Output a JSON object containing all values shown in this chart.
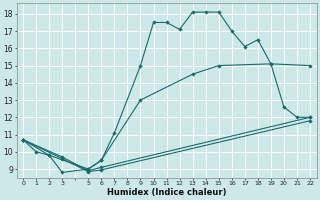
{
  "xlabel": "Humidex (Indice chaleur)",
  "bg_color": "#cde8e8",
  "grid_color": "#ffffff",
  "line_color": "#1a6b6b",
  "xlim": [
    -0.5,
    22.5
  ],
  "ylim": [
    8.5,
    18.6
  ],
  "xticks": [
    0,
    1,
    2,
    3,
    5,
    6,
    7,
    8,
    9,
    10,
    11,
    12,
    13,
    14,
    15,
    16,
    17,
    18,
    19,
    20,
    21,
    22
  ],
  "yticks": [
    9,
    10,
    11,
    12,
    13,
    14,
    15,
    16,
    17,
    18
  ],
  "line1_x": [
    0,
    1,
    2,
    3,
    5,
    6,
    7,
    9,
    10,
    11,
    12,
    13,
    14,
    15,
    16,
    17,
    18,
    19,
    20,
    21,
    22
  ],
  "line1_y": [
    10.7,
    10.0,
    9.8,
    8.8,
    9.0,
    9.5,
    11.1,
    15.0,
    17.5,
    17.5,
    17.1,
    18.1,
    18.1,
    18.1,
    17.0,
    16.1,
    16.5,
    15.1,
    12.6,
    12.0,
    12.0
  ],
  "line2_x": [
    0,
    2,
    5,
    6,
    9,
    13,
    15,
    19,
    22
  ],
  "line2_y": [
    10.7,
    9.8,
    9.0,
    9.5,
    13.0,
    14.5,
    15.0,
    15.1,
    15.0
  ],
  "line3_x": [
    0,
    3,
    5,
    6,
    22
  ],
  "line3_y": [
    10.7,
    9.7,
    8.9,
    9.1,
    12.0
  ],
  "line4_x": [
    0,
    3,
    5,
    6,
    22
  ],
  "line4_y": [
    10.7,
    9.6,
    8.85,
    8.95,
    11.8
  ]
}
